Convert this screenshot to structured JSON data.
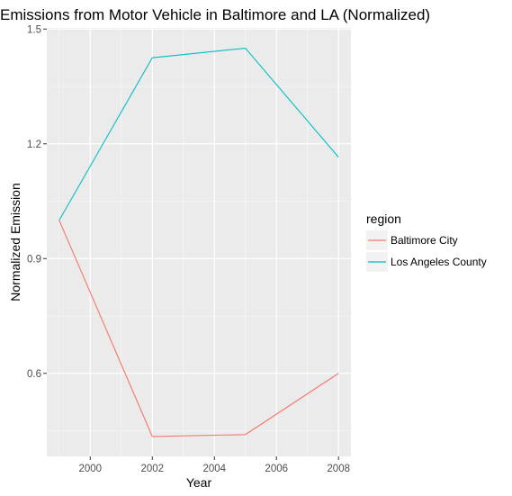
{
  "chart_data": {
    "type": "line",
    "title": "Emissions from Motor Vehicle in Baltimore and LA (Normalized)",
    "xlabel": "Year",
    "ylabel": "Normalized Emission",
    "xlim": [
      1998.6,
      2008.4
    ],
    "ylim": [
      0.383,
      1.503
    ],
    "x_ticks": [
      2000,
      2002,
      2004,
      2006,
      2008
    ],
    "y_ticks": [
      0.6,
      0.9,
      1.2,
      1.5
    ],
    "y_tick_labels": [
      "0.6",
      "0.9",
      "1.2",
      "1.5"
    ],
    "x": [
      1999,
      2002,
      2005,
      2008
    ],
    "series": [
      {
        "name": "Baltimore City",
        "color": "#f8766d",
        "values": [
          1.0,
          0.435,
          0.44,
          0.6
        ]
      },
      {
        "name": "Los Angeles County",
        "color": "#00bfc4",
        "values": [
          1.0,
          1.425,
          1.45,
          1.165
        ]
      }
    ],
    "legend": {
      "title": "region",
      "placement": "right"
    },
    "grid": true,
    "panel_background": "#ebebeb"
  }
}
